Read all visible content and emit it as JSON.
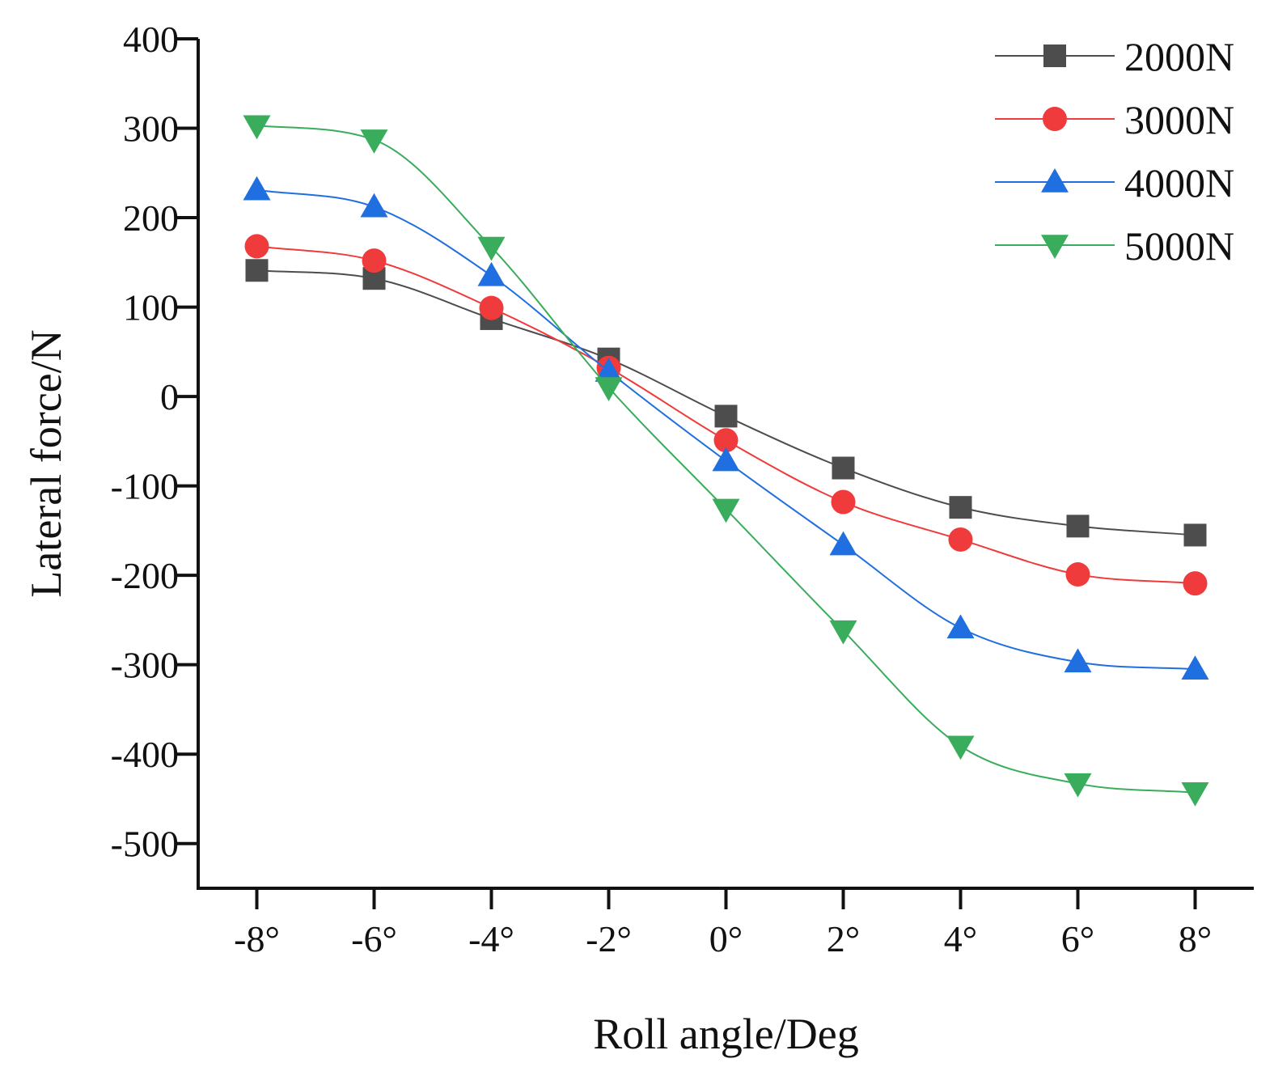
{
  "chart_data": {
    "type": "line",
    "xlabel": "Roll angle/Deg",
    "ylabel": "Lateral force/N",
    "categories": [
      "-8°",
      "-6°",
      "-4°",
      "-2°",
      "0°",
      "2°",
      "4°",
      "6°",
      "8°"
    ],
    "x": [
      -8,
      -6,
      -4,
      -2,
      0,
      2,
      4,
      6,
      8
    ],
    "xlim": [
      -9,
      9
    ],
    "ylim": [
      -550,
      400
    ],
    "yticks": [
      400,
      300,
      200,
      100,
      0,
      -100,
      -200,
      -300,
      -400,
      -500
    ],
    "ytick_labels": [
      "400",
      "300",
      "200",
      "100",
      "0",
      "-100",
      "-200",
      "-300",
      "-400",
      "-500"
    ],
    "grid": false,
    "legend_position": "top-right",
    "series": [
      {
        "name": "2000N",
        "color": "#4d4d4d",
        "marker": "square",
        "values": [
          141,
          132,
          87,
          42,
          -22,
          -80,
          -124,
          -145,
          -155
        ]
      },
      {
        "name": "3000N",
        "color": "#ef3b3b",
        "marker": "circle",
        "values": [
          168,
          152,
          99,
          32,
          -49,
          -118,
          -160,
          -199,
          -209
        ]
      },
      {
        "name": "4000N",
        "color": "#1f6fe0",
        "marker": "triangle-up",
        "values": [
          231,
          212,
          135,
          28,
          -72,
          -166,
          -259,
          -297,
          -305
        ]
      },
      {
        "name": "5000N",
        "color": "#3aad5c",
        "marker": "triangle-down",
        "values": [
          303,
          287,
          167,
          10,
          -126,
          -262,
          -391,
          -433,
          -443
        ]
      }
    ]
  }
}
